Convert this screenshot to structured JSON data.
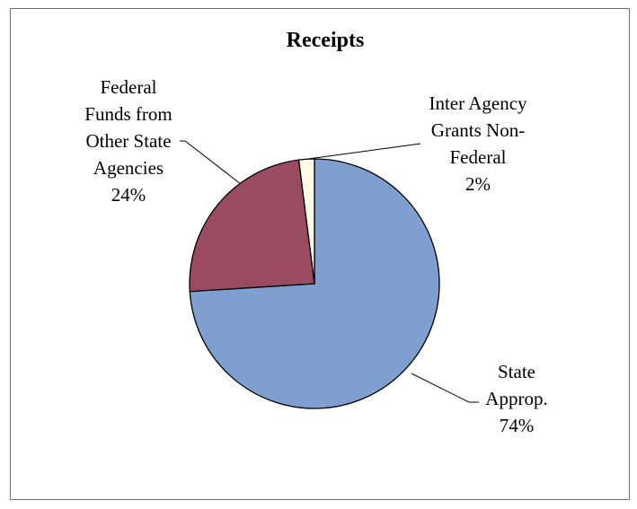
{
  "chart_data": {
    "type": "pie",
    "title": "Receipts",
    "slices": [
      {
        "name": "State Approp.",
        "value": 74,
        "color": "#7f9fd1",
        "label_lines": [
          "State",
          "Approp.",
          "74%"
        ]
      },
      {
        "name": "Federal Funds from Other State Agencies",
        "value": 24,
        "color": "#9a4b61",
        "label_lines": [
          "Federal",
          "Funds from",
          "Other State",
          "Agencies",
          "24%"
        ]
      },
      {
        "name": "Inter Agency Grants Non-Federal",
        "value": 2,
        "color": "#fffbe6",
        "label_lines": [
          "Inter Agency",
          "Grants Non-",
          "Federal",
          "2%"
        ]
      }
    ],
    "legend": "none",
    "start_angle": "12 o'clock",
    "direction": "clockwise"
  }
}
